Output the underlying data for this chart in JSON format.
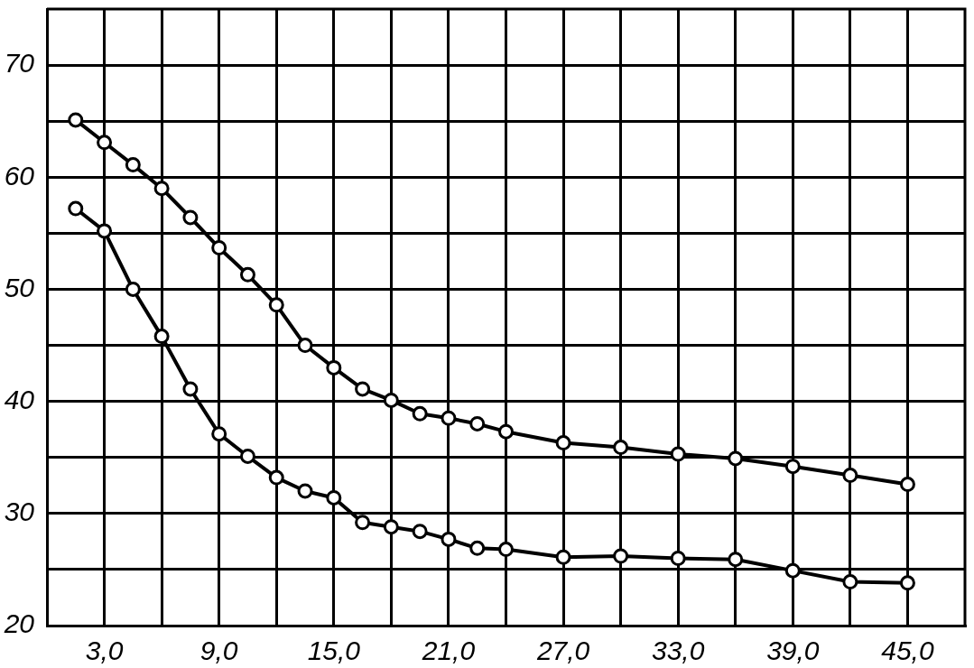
{
  "chart_data": {
    "type": "line",
    "x": [
      1.5,
      3,
      4.5,
      6,
      7.5,
      9,
      10.5,
      12,
      13.5,
      15,
      16.5,
      18,
      19.5,
      21,
      22.5,
      24,
      27,
      30,
      33,
      36,
      39,
      42,
      45
    ],
    "xlim": [
      0,
      48
    ],
    "ylim": [
      20,
      75
    ],
    "xticks": [
      {
        "value": 3,
        "label": "3,0"
      },
      {
        "value": 6,
        "label": null
      },
      {
        "value": 9,
        "label": "9,0"
      },
      {
        "value": 12,
        "label": null
      },
      {
        "value": 15,
        "label": "15,0"
      },
      {
        "value": 18,
        "label": null
      },
      {
        "value": 21,
        "label": "21,0"
      },
      {
        "value": 24,
        "label": null
      },
      {
        "value": 27,
        "label": "27,0"
      },
      {
        "value": 30,
        "label": null
      },
      {
        "value": 33,
        "label": "33,0"
      },
      {
        "value": 36,
        "label": null
      },
      {
        "value": 39,
        "label": "39,0"
      },
      {
        "value": 42,
        "label": null
      },
      {
        "value": 45,
        "label": "45,0"
      }
    ],
    "yticks": [
      20,
      {
        "value": 25,
        "label": null
      },
      30,
      {
        "value": 35,
        "label": null
      },
      40,
      {
        "value": 45,
        "label": null
      },
      50,
      {
        "value": 55,
        "label": null
      },
      60,
      {
        "value": 65,
        "label": null
      },
      70
    ],
    "grid": true,
    "marker": "circle",
    "line_style": "solid",
    "series": [
      {
        "color": "#000000",
        "values": [
          65.1,
          63.1,
          61.1,
          59.0,
          56.4,
          53.7,
          51.3,
          48.6,
          45.0,
          43.0,
          41.1,
          40.1,
          38.9,
          38.5,
          38.0,
          37.3,
          36.3,
          35.9,
          35.3,
          34.9,
          34.2,
          33.4,
          32.6
        ]
      },
      {
        "color": "#000000",
        "values": [
          57.2,
          55.2,
          50.0,
          45.8,
          41.1,
          37.1,
          35.1,
          33.2,
          32.0,
          31.4,
          29.2,
          28.8,
          28.4,
          27.7,
          26.9,
          26.8,
          26.1,
          26.2,
          26.0,
          25.9,
          24.9,
          23.9,
          23.8
        ]
      }
    ]
  }
}
